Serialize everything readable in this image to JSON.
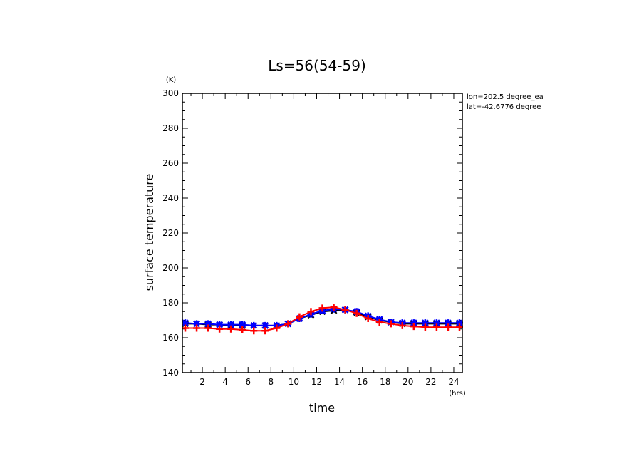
{
  "chart_data": {
    "type": "line",
    "title": "Ls=56(54-59)",
    "xlabel": "time",
    "ylabel": "surface temperature",
    "x_unit": "(hrs)",
    "y_unit": "(K)",
    "xlim": [
      0.25,
      24.75
    ],
    "ylim": [
      140,
      300
    ],
    "xticks": [
      2,
      4,
      6,
      8,
      10,
      12,
      14,
      16,
      18,
      20,
      22,
      24
    ],
    "yticks": [
      140,
      160,
      180,
      200,
      220,
      240,
      260,
      280,
      300
    ],
    "x_minor_step": 1,
    "y_minor_step": 5,
    "annotations": [
      "lon=202.5 degree_ea",
      "lat=-42.6776 degree"
    ],
    "grid": false,
    "x": [
      0.5,
      1.5,
      2.5,
      3.5,
      4.5,
      5.5,
      6.5,
      7.5,
      8.5,
      9.5,
      10.5,
      11.5,
      12.5,
      13.5,
      14.5,
      15.5,
      16.5,
      17.5,
      18.5,
      19.5,
      20.5,
      21.5,
      22.5,
      23.5,
      24.5
    ],
    "series": [
      {
        "color": "#000000",
        "marker": "x",
        "values": [
          168,
          168,
          167.5,
          167.5,
          167,
          167,
          167,
          167,
          167,
          168,
          171,
          173,
          175,
          175.5,
          176,
          174.5,
          172,
          170,
          169,
          168,
          168,
          168,
          168,
          168,
          168
        ]
      },
      {
        "color": "#0000ff",
        "marker": "star",
        "values": [
          168.5,
          168,
          168,
          167.5,
          167.5,
          167.5,
          167,
          167,
          167,
          168,
          171,
          173.5,
          175.5,
          176.5,
          176,
          175,
          172.5,
          170.5,
          169,
          168.5,
          168.5,
          168.5,
          168.5,
          168.5,
          168.5
        ]
      },
      {
        "color": "#ff0000",
        "marker": "plus",
        "values": [
          165.5,
          165.5,
          165.5,
          165,
          165,
          164.5,
          164,
          164,
          165.5,
          168,
          172,
          175,
          177,
          177.5,
          176,
          174,
          171,
          169,
          168,
          167,
          166.5,
          166,
          166,
          166,
          166
        ]
      }
    ]
  }
}
